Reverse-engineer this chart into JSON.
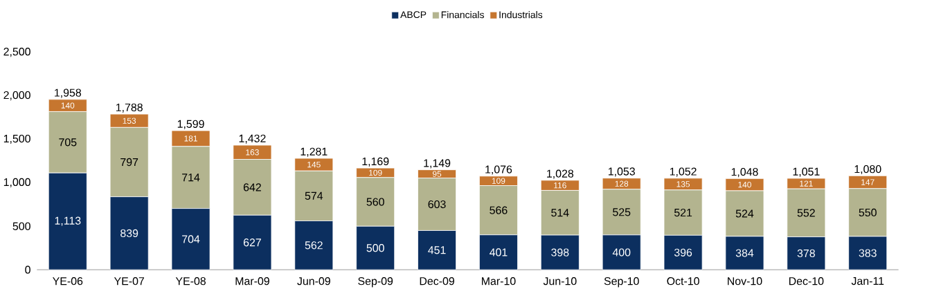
{
  "chart_data": {
    "type": "bar",
    "stacked": true,
    "legend": "top",
    "categories": [
      "YE-06",
      "YE-07",
      "YE-08",
      "Mar-09",
      "Jun-09",
      "Sep-09",
      "Dec-09",
      "Mar-10",
      "Jun-10",
      "Sep-10",
      "Oct-10",
      "Nov-10",
      "Dec-10",
      "Jan-11"
    ],
    "series": [
      {
        "name": "ABCP",
        "color": "#0c2f5f",
        "values": [
          1113,
          839,
          704,
          627,
          562,
          500,
          451,
          401,
          398,
          400,
          396,
          384,
          378,
          383
        ],
        "value_labels": [
          "1,113",
          "839",
          "704",
          "627",
          "562",
          "500",
          "451",
          "401",
          "398",
          "400",
          "396",
          "384",
          "378",
          "383"
        ]
      },
      {
        "name": "Financials",
        "color": "#b3b48f",
        "values": [
          705,
          797,
          714,
          642,
          574,
          560,
          603,
          566,
          514,
          525,
          521,
          524,
          552,
          550
        ],
        "value_labels": [
          "705",
          "797",
          "714",
          "642",
          "574",
          "560",
          "603",
          "566",
          "514",
          "525",
          "521",
          "524",
          "552",
          "550"
        ]
      },
      {
        "name": "Industrials",
        "color": "#c6762f",
        "values": [
          140,
          153,
          181,
          163,
          145,
          109,
          95,
          109,
          116,
          128,
          135,
          140,
          121,
          147
        ],
        "value_labels": [
          "140",
          "153",
          "181",
          "163",
          "145",
          "109",
          "95",
          "109",
          "116",
          "128",
          "135",
          "140",
          "121",
          "147"
        ]
      }
    ],
    "totals": [
      "1,958",
      "1,788",
      "1,599",
      "1,432",
      "1,281",
      "1,169",
      "1,149",
      "1,076",
      "1,028",
      "1,053",
      "1,052",
      "1,048",
      "1,051",
      "1,080"
    ],
    "ylim": [
      0,
      2500
    ],
    "yticks": [
      0,
      500,
      {
        "value": 1000,
        "label": "1,000"
      },
      {
        "value": 1500,
        "label": "1,500"
      },
      {
        "value": 2000,
        "label": "2,000"
      },
      {
        "value": 2500,
        "label": "2,500"
      }
    ],
    "grid": false
  }
}
